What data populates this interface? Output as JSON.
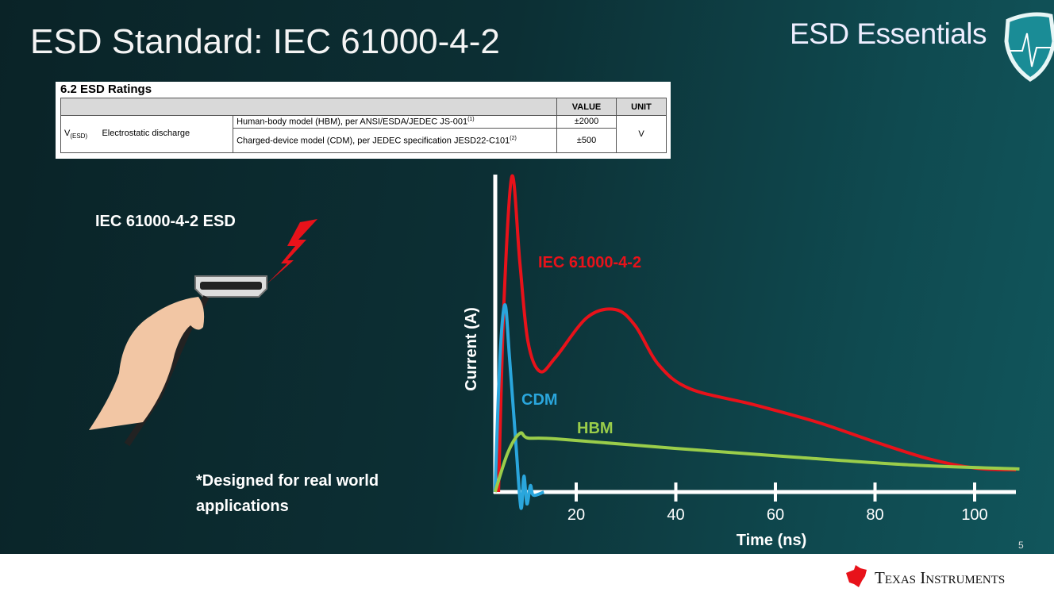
{
  "slide": {
    "title": "ESD Standard: IEC 61000-4-2",
    "brand": "ESD Essentials",
    "brand_icon": "shield-heartbeat-icon",
    "page_number": "5",
    "footer_logo": "Texas Instruments",
    "left_label": "IEC 61000-4-2 ESD",
    "note": "*Designed for real world applications",
    "illustration": "hand-holding-hdmi-cable-with-lightning-bolt"
  },
  "ratings_table": {
    "title": "6.2   ESD Ratings",
    "headers": [
      "",
      "",
      "VALUE",
      "UNIT"
    ],
    "symbol": "V",
    "symbol_sub": "(ESD)",
    "parameter": "Electrostatic discharge",
    "rows": [
      {
        "condition": "Human-body model (HBM), per ANSI/ESDA/JEDEC JS-001",
        "footnote": "(1)",
        "value": "±2000"
      },
      {
        "condition": "Charged-device model (CDM), per JEDEC specification JESD22-C101",
        "footnote": "(2)",
        "value": "±500"
      }
    ],
    "unit": "V"
  },
  "chart_data": {
    "type": "line",
    "xlabel": "Time (ns)",
    "ylabel": "Current (A)",
    "xticks": [
      20,
      40,
      60,
      80,
      100
    ],
    "xlim": [
      0,
      110
    ],
    "ylim": [
      0,
      100
    ],
    "y_ticks_shown": false,
    "grid": false,
    "legend": "inline labels",
    "series": [
      {
        "name": "IEC 61000-4-2",
        "color": "#e8121a",
        "points": [
          [
            4.4,
            0
          ],
          [
            5.5,
            60
          ],
          [
            7.1,
            99.5
          ],
          [
            8.7,
            72
          ],
          [
            10.3,
            47.5
          ],
          [
            12.7,
            38
          ],
          [
            15.9,
            42.5
          ],
          [
            22.2,
            55
          ],
          [
            27.8,
            57.5
          ],
          [
            31.8,
            52.5
          ],
          [
            36.6,
            40
          ],
          [
            42.9,
            32.5
          ],
          [
            55.7,
            27.5
          ],
          [
            68.4,
            22
          ],
          [
            79.6,
            16
          ],
          [
            90.7,
            10.5
          ],
          [
            100.3,
            7.5
          ],
          [
            108.3,
            7
          ]
        ]
      },
      {
        "name": "CDM",
        "color": "#2aa6dc",
        "points": [
          [
            3.7,
            0
          ],
          [
            4.7,
            42.5
          ],
          [
            5.7,
            59
          ],
          [
            6.6,
            42.5
          ],
          [
            7.9,
            15
          ],
          [
            8.9,
            -5
          ],
          [
            9.5,
            5
          ],
          [
            10.1,
            -3.75
          ],
          [
            10.8,
            2
          ],
          [
            11.4,
            -1
          ],
          [
            13.5,
            0
          ]
        ]
      },
      {
        "name": "HBM",
        "color": "#9acd4a",
        "points": [
          [
            3.7,
            0
          ],
          [
            6.3,
            12.5
          ],
          [
            8.7,
            18.5
          ],
          [
            10.3,
            17
          ],
          [
            15.9,
            16.75
          ],
          [
            39.8,
            13.75
          ],
          [
            63.7,
            11
          ],
          [
            87.6,
            8.5
          ],
          [
            109,
            7.25
          ]
        ]
      }
    ]
  }
}
